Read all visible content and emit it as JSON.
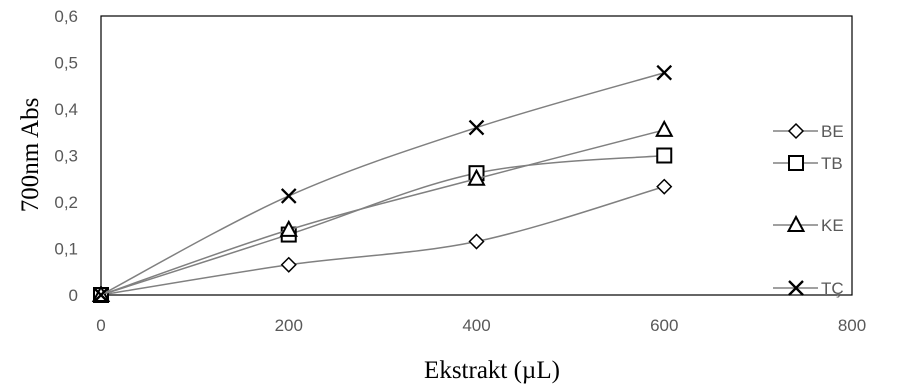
{
  "chart_data": {
    "type": "line",
    "title": "",
    "xlabel": "Ekstrakt (µL)",
    "ylabel": "700nm Abs",
    "xlim": [
      0,
      800
    ],
    "ylim": [
      0,
      0.6
    ],
    "x_ticks": [
      0,
      200,
      400,
      600,
      800
    ],
    "y_ticks": [
      0,
      0.1,
      0.2,
      0.3,
      0.4,
      0.5,
      0.6
    ],
    "x_tick_labels": [
      "0",
      "200",
      "400",
      "600",
      "800"
    ],
    "y_tick_labels": [
      "0",
      "0,1",
      "0,2",
      "0,3",
      "0,4",
      "0,5",
      "0,6"
    ],
    "grid": false,
    "legend_position": "right",
    "series": [
      {
        "name": "BE",
        "marker": "diamond",
        "x": [
          0,
          200,
          400,
          600
        ],
        "values": [
          0,
          0.065,
          0.115,
          0.233
        ]
      },
      {
        "name": "TB",
        "marker": "square",
        "x": [
          0,
          200,
          400,
          600
        ],
        "values": [
          0,
          0.13,
          0.262,
          0.3
        ]
      },
      {
        "name": "KE",
        "marker": "triangle",
        "x": [
          0,
          200,
          400,
          600
        ],
        "values": [
          0,
          0.14,
          0.25,
          0.355
        ]
      },
      {
        "name": "TÇ",
        "marker": "x",
        "x": [
          0,
          200,
          400,
          600
        ],
        "values": [
          0,
          0.213,
          0.36,
          0.478
        ]
      }
    ]
  },
  "colors": {
    "line": "#808080",
    "marker": "#000000",
    "axis": "#000000",
    "label": "#595959"
  }
}
